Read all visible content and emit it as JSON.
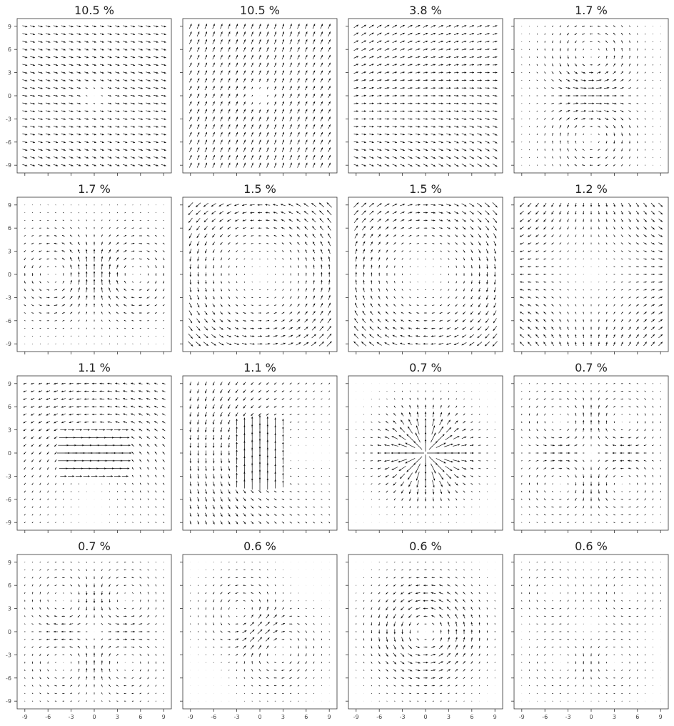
{
  "chart_data": {
    "type": "quiver-grid",
    "grid": {
      "rows": 4,
      "cols": 4
    },
    "axis": {
      "xlim": [
        -10,
        10
      ],
      "ylim": [
        -10,
        10
      ],
      "xticks": [
        -9,
        -6,
        -3,
        0,
        3,
        6,
        9
      ],
      "yticks": [
        9,
        6,
        3,
        0,
        -3,
        -6,
        -9
      ],
      "xtick_labels": [
        "-9",
        "-6",
        "-3",
        "0",
        "3",
        "6",
        "9"
      ],
      "ytick_labels": [
        "9",
        "6",
        "3",
        "0",
        "-3",
        "-6",
        "-9"
      ]
    },
    "sample_grid": {
      "start": -9,
      "stop": 9,
      "step": 1
    },
    "colors": {
      "arrow": "#111111",
      "frame": "#333333",
      "background": "#ffffff"
    },
    "panels": [
      {
        "title": "10.5 %",
        "field": "uniform",
        "params": {
          "ux": 1.0,
          "uy": -0.28,
          "mag": 0.9,
          "center_hole": 2.5
        }
      },
      {
        "title": "10.5 %",
        "field": "uniform",
        "params": {
          "ux": 0.45,
          "uy": 1.0,
          "mag": 0.95,
          "center_hole": 2.5
        }
      },
      {
        "title": "3.8 %",
        "field": "divergent_x",
        "params": {
          "mag": 0.8
        }
      },
      {
        "title": "1.7 %",
        "field": "double_vortex_h",
        "params": {
          "mag": 0.8
        }
      },
      {
        "title": "1.7 %",
        "field": "double_vortex_v",
        "params": {
          "mag": 0.8
        }
      },
      {
        "title": "1.5 %",
        "field": "rotation_ccw",
        "params": {
          "mag": 0.85
        }
      },
      {
        "title": "1.5 %",
        "field": "rotation_cw",
        "params": {
          "mag": 0.85
        }
      },
      {
        "title": "1.2 %",
        "field": "saddle",
        "params": {
          "mag": 0.7
        }
      },
      {
        "title": "1.1 %",
        "field": "jet_x",
        "params": {
          "mag": 1.6,
          "band": 3
        }
      },
      {
        "title": "1.1 %",
        "field": "jet_y",
        "params": {
          "mag": 1.7,
          "band": 3
        }
      },
      {
        "title": "0.7 %",
        "field": "radial",
        "params": {
          "mag": 1.5
        }
      },
      {
        "title": "0.7 %",
        "field": "quad_vortex",
        "params": {
          "mag": 0.8
        }
      },
      {
        "title": "0.7 %",
        "field": "quad_vortex_b",
        "params": {
          "mag": 0.8
        }
      },
      {
        "title": "0.6 %",
        "field": "twist",
        "params": {
          "mag": 0.85
        }
      },
      {
        "title": "0.6 %",
        "field": "central_vortex",
        "params": {
          "mag": 1.2
        }
      },
      {
        "title": "0.6 %",
        "field": "multi_vortex",
        "params": {
          "mag": 0.85
        }
      }
    ]
  }
}
